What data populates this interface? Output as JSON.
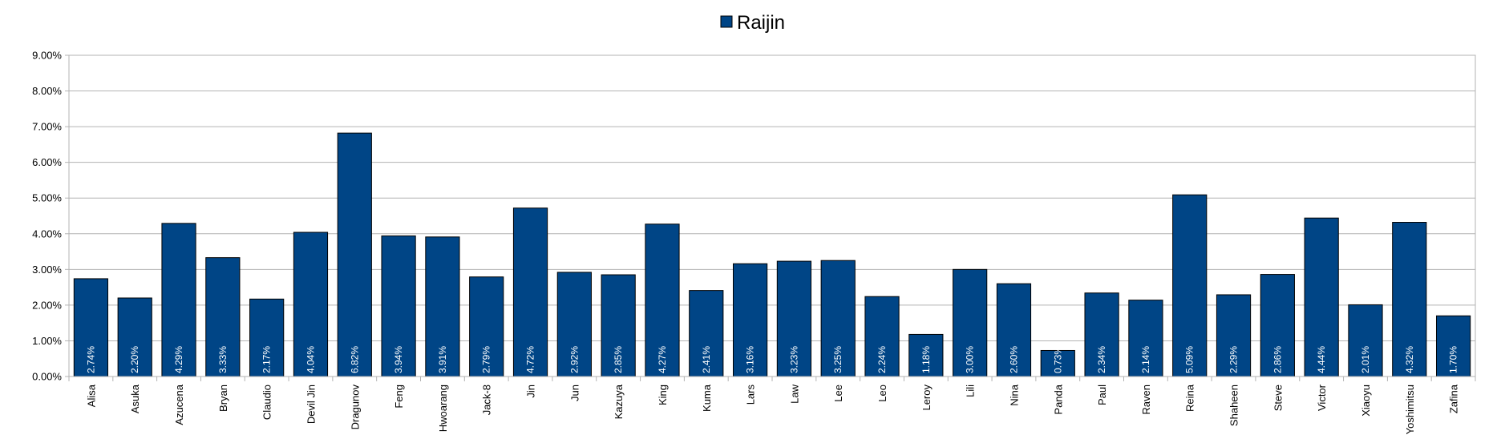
{
  "chart_data": {
    "type": "bar",
    "legend": {
      "position": "top-center"
    },
    "series": [
      {
        "name": "Raijin",
        "color": "#004586",
        "values": [
          2.74,
          2.2,
          4.29,
          3.33,
          2.17,
          4.04,
          6.82,
          3.94,
          3.91,
          2.79,
          4.72,
          2.92,
          2.85,
          4.27,
          2.41,
          3.16,
          3.23,
          3.25,
          2.24,
          1.18,
          3.0,
          2.6,
          0.73,
          2.34,
          2.14,
          5.09,
          2.29,
          2.86,
          4.44,
          2.01,
          4.32,
          1.7
        ],
        "labels": [
          "2.74%",
          "2.20%",
          "4.29%",
          "3.33%",
          "2.17%",
          "4.04%",
          "6.82%",
          "3.94%",
          "3.91%",
          "2.79%",
          "4.72%",
          "2.92%",
          "2.85%",
          "4.27%",
          "2.41%",
          "3.16%",
          "3.23%",
          "3.25%",
          "2.24%",
          "1.18%",
          "3.00%",
          "2.60%",
          "0.73%",
          "2.34%",
          "2.14%",
          "5.09%",
          "2.29%",
          "2.86%",
          "4.44%",
          "2.01%",
          "4.32%",
          "1.70%"
        ]
      }
    ],
    "categories": [
      "Alisa",
      "Asuka",
      "Azucena",
      "Bryan",
      "Claudio",
      "Devil Jin",
      "Dragunov",
      "Feng",
      "Hwoarang",
      "Jack-8",
      "Jin",
      "Jun",
      "Kazuya",
      "King",
      "Kuma",
      "Lars",
      "Law",
      "Lee",
      "Leo",
      "Leroy",
      "Lili",
      "Nina",
      "Panda",
      "Paul",
      "Raven",
      "Reina",
      "Shaheen",
      "Steve",
      "Victor",
      "Xiaoyu",
      "Yoshimitsu",
      "Zafina"
    ],
    "ylim": [
      0,
      9
    ],
    "yticks": [
      0,
      1,
      2,
      3,
      4,
      5,
      6,
      7,
      8,
      9
    ],
    "ytick_labels": [
      "0.00%",
      "1.00%",
      "2.00%",
      "3.00%",
      "4.00%",
      "5.00%",
      "6.00%",
      "7.00%",
      "8.00%",
      "9.00%"
    ],
    "grid": true
  }
}
